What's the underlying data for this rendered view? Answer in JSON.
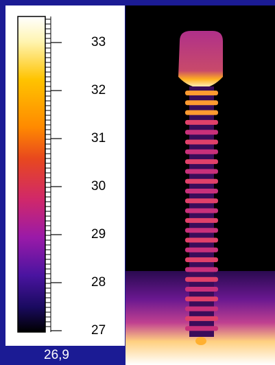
{
  "scale": {
    "ticks": [
      33,
      32,
      31,
      30,
      29,
      28,
      27
    ],
    "bottom_label": "26,9"
  }
}
